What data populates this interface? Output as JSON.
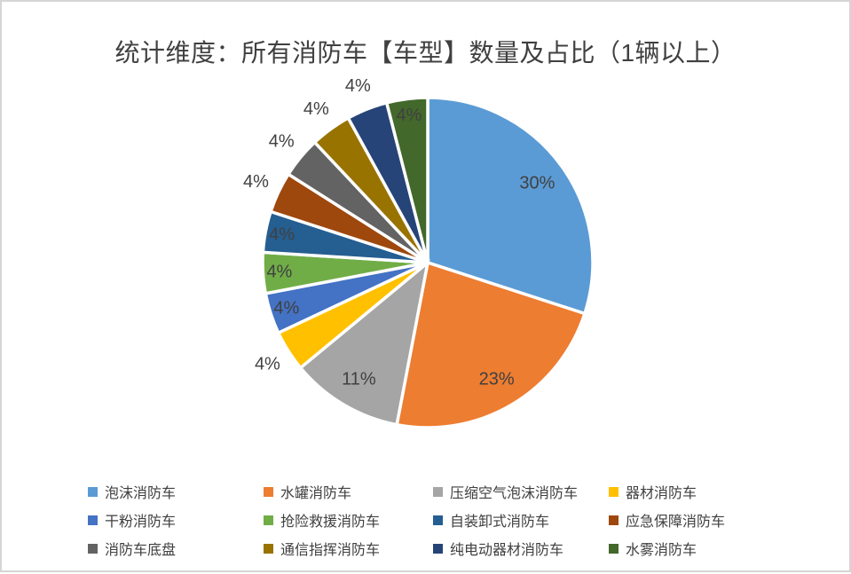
{
  "window": {
    "background": "#FFFFFF",
    "border_color": "#D5D5D5"
  },
  "chart_data": {
    "type": "pie",
    "title": "统计维度：所有消防车【车型】数量及占比（1辆以上）",
    "title_color": "#404040",
    "categories": [
      "泡沫消防车",
      "水罐消防车",
      "压缩空气泡沫消防车",
      "器材消防车",
      "干粉消防车",
      "抢险救援消防车",
      "自装卸式消防车",
      "应急保障消防车",
      "消防车底盘",
      "通信指挥消防车",
      "纯电动器材消防车",
      "水雾消防车"
    ],
    "values": [
      30,
      23,
      11,
      4,
      4,
      4,
      4,
      4,
      4,
      4,
      4,
      4
    ],
    "unit": "percent",
    "data_labels": [
      "30%",
      "23%",
      "11%",
      "4%",
      "4%",
      "4%",
      "4%",
      "4%",
      "4%",
      "4%",
      "4%",
      "4%"
    ],
    "colors": [
      "#5B9BD5",
      "#ED7D31",
      "#A5A5A5",
      "#FFC000",
      "#4472C4",
      "#70AD47",
      "#255E91",
      "#9E480E",
      "#636363",
      "#997300",
      "#264478",
      "#43682B"
    ],
    "label_placement": [
      "inside",
      "inside",
      "inside",
      "outside",
      "inside",
      "inside",
      "inside",
      "outside",
      "outside",
      "outside",
      "outside",
      "inside"
    ],
    "label_color": "#404040",
    "slice_border_color": "#FFFFFF",
    "start_angle": 0,
    "direction": "clockwise",
    "grid": false,
    "legend_position": "bottom",
    "legend_columns": 4
  }
}
